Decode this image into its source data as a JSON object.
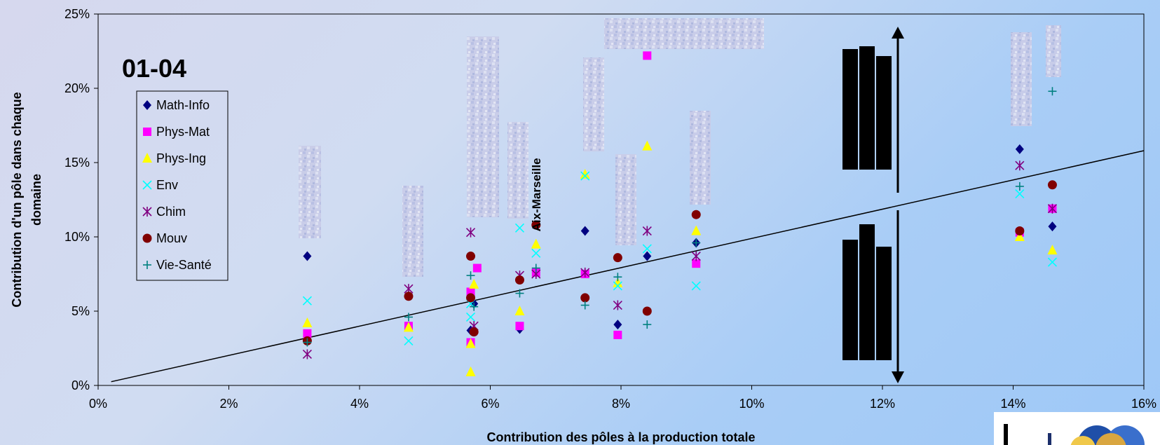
{
  "chart_data": {
    "type": "scatter",
    "panel_label": "01-04",
    "xlabel": "Contribution des pôles à la production totale",
    "ylabel_lines": [
      "Contribution d'un pôle dans chaque",
      "domaine"
    ],
    "xlim": [
      0,
      16
    ],
    "ylim": [
      0,
      25
    ],
    "x_ticks": [
      0,
      2,
      4,
      6,
      8,
      10,
      12,
      14,
      16
    ],
    "y_ticks": [
      0,
      5,
      10,
      15,
      20,
      25
    ],
    "x_tick_labels": [
      "0%",
      "2%",
      "4%",
      "6%",
      "8%",
      "10%",
      "12%",
      "14%",
      "16%"
    ],
    "y_tick_labels": [
      "0%",
      "5%",
      "10%",
      "15%",
      "20%",
      "25%"
    ],
    "legend_position": "left",
    "grid": false,
    "trendline": {
      "x": [
        0.2,
        16
      ],
      "y": [
        0.25,
        15.8
      ]
    },
    "annotation": {
      "text": "Aix-Marseille",
      "x": 6.7,
      "y": 9.7
    },
    "series": [
      {
        "name": "Math-Info",
        "marker": "diamond",
        "color": "#000080",
        "x": [
          3.2,
          5.7,
          5.75,
          6.45,
          6.7,
          7.45,
          7.95,
          8.4,
          9.15,
          14.1,
          14.6
        ],
        "y": [
          8.7,
          3.7,
          5.5,
          3.8,
          7.6,
          10.4,
          4.1,
          8.7,
          9.6,
          15.9,
          10.7
        ]
      },
      {
        "name": "Phys-Mat",
        "marker": "square",
        "color": "#FF00FF",
        "x": [
          3.2,
          4.75,
          5.7,
          5.7,
          5.8,
          6.45,
          6.7,
          7.45,
          7.95,
          8.4,
          9.15,
          14.1,
          14.6
        ],
        "y": [
          3.5,
          4.0,
          6.3,
          2.9,
          7.9,
          4.0,
          7.6,
          7.5,
          3.4,
          22.2,
          8.2,
          10.3,
          11.9
        ]
      },
      {
        "name": "Phys-Ing",
        "marker": "triangle",
        "color": "#FFFF00",
        "x": [
          3.2,
          4.75,
          5.7,
          5.7,
          5.75,
          6.45,
          6.7,
          7.45,
          7.95,
          8.4,
          9.15,
          14.1,
          14.6
        ],
        "y": [
          4.2,
          3.9,
          2.8,
          0.9,
          6.8,
          5.0,
          9.5,
          14.2,
          6.9,
          16.1,
          10.4,
          10.0,
          9.1
        ]
      },
      {
        "name": "Env",
        "marker": "x",
        "color": "#00FFFF",
        "x": [
          3.2,
          4.75,
          5.7,
          5.7,
          6.45,
          6.7,
          7.45,
          7.95,
          8.4,
          9.15,
          14.1,
          14.6
        ],
        "y": [
          5.7,
          3.0,
          5.5,
          4.6,
          10.6,
          8.9,
          14.1,
          6.7,
          9.2,
          6.7,
          12.9,
          8.3
        ]
      },
      {
        "name": "Chim",
        "marker": "star",
        "color": "#800080",
        "x": [
          3.2,
          4.75,
          5.7,
          5.75,
          6.45,
          6.7,
          7.45,
          7.95,
          8.4,
          9.15,
          14.1,
          14.6
        ],
        "y": [
          2.1,
          6.5,
          10.3,
          4.0,
          7.4,
          7.5,
          7.6,
          5.4,
          10.4,
          8.7,
          14.8,
          11.9
        ]
      },
      {
        "name": "Mouv",
        "marker": "circle",
        "color": "#800000",
        "x": [
          3.2,
          4.75,
          5.7,
          5.7,
          5.75,
          6.45,
          6.7,
          7.45,
          7.95,
          8.4,
          9.15,
          14.1,
          14.6
        ],
        "y": [
          3.0,
          6.0,
          8.7,
          5.9,
          3.6,
          7.1,
          10.8,
          5.9,
          8.6,
          5.0,
          11.5,
          10.4,
          13.5
        ]
      },
      {
        "name": "Vie-Santé",
        "marker": "plus",
        "color": "#008080",
        "x": [
          3.2,
          4.75,
          5.7,
          5.75,
          6.45,
          6.7,
          7.45,
          7.95,
          8.4,
          9.15,
          14.1,
          14.6
        ],
        "y": [
          2.9,
          4.6,
          7.4,
          5.3,
          6.2,
          7.9,
          5.4,
          7.3,
          4.1,
          9.6,
          13.4,
          19.8
        ]
      }
    ]
  }
}
